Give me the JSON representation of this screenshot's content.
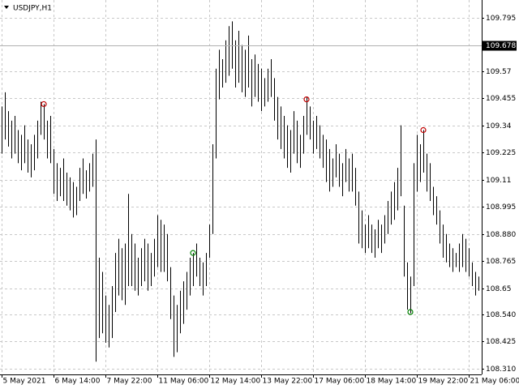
{
  "chart_data": {
    "type": "ohlc",
    "title": "USDJPY,H1",
    "xlim": [
      -0.5,
      148
    ],
    "ylim": [
      108.31,
      109.795
    ],
    "yticks": [
      109.795,
      109.678,
      109.57,
      109.455,
      109.34,
      109.225,
      109.11,
      108.995,
      {
        "value": 108.88,
        "label": "108.880"
      },
      108.765,
      108.65,
      {
        "value": 108.54,
        "label": "108.540"
      },
      108.425,
      {
        "value": 108.31,
        "label": "108.310"
      }
    ],
    "xticks": [
      {
        "value": 0,
        "label": "5 May 2021"
      },
      {
        "value": 16,
        "label": "6 May 14:00"
      },
      {
        "value": 32,
        "label": "7 May 22:00"
      },
      {
        "value": 48,
        "label": "11 May 06:00"
      },
      {
        "value": 64,
        "label": "12 May 14:00"
      },
      {
        "value": 80,
        "label": "13 May 22:00"
      },
      {
        "value": 96,
        "label": "17 May 06:00"
      },
      {
        "value": 112,
        "label": "18 May 14:00"
      },
      {
        "value": 128,
        "label": "19 May 22:00"
      },
      {
        "value": 144,
        "label": "21 May 06:00"
      }
    ],
    "current_price": 109.678,
    "grid": true,
    "color": "#000000",
    "high": [
      109.42,
      109.48,
      109.4,
      109.36,
      109.38,
      109.32,
      109.3,
      109.34,
      109.28,
      109.26,
      109.3,
      109.36,
      109.44,
      109.43,
      109.36,
      109.38,
      109.24,
      109.18,
      109.16,
      109.2,
      109.14,
      109.12,
      109.1,
      109.08,
      109.16,
      109.2,
      109.15,
      109.18,
      109.22,
      109.28,
      108.78,
      108.72,
      108.62,
      108.58,
      108.66,
      108.8,
      108.86,
      108.82,
      108.84,
      109.05,
      108.88,
      108.84,
      108.78,
      108.82,
      108.86,
      108.84,
      108.8,
      108.86,
      108.96,
      108.94,
      108.92,
      108.88,
      108.74,
      108.62,
      108.58,
      108.64,
      108.68,
      108.72,
      108.78,
      108.8,
      108.84,
      108.78,
      108.76,
      108.8,
      108.92,
      109.26,
      109.58,
      109.66,
      109.62,
      109.7,
      109.76,
      109.78,
      109.7,
      109.74,
      109.68,
      109.66,
      109.72,
      109.62,
      109.64,
      109.6,
      109.58,
      109.54,
      109.58,
      109.62,
      109.54,
      109.46,
      109.42,
      109.38,
      109.34,
      109.32,
      109.4,
      109.36,
      109.3,
      109.38,
      109.46,
      109.42,
      109.36,
      109.38,
      109.34,
      109.3,
      109.28,
      109.24,
      109.2,
      109.26,
      109.22,
      109.18,
      109.24,
      109.2,
      109.22,
      109.16,
      109.06,
      108.98,
      108.92,
      108.96,
      108.92,
      108.9,
      108.94,
      108.92,
      108.96,
      109.02,
      109.06,
      109.1,
      109.16,
      109.34,
      109.0,
      108.76,
      108.7,
      109.18,
      109.3,
      109.26,
      109.32,
      109.22,
      109.18,
      109.08,
      109.04,
      108.98,
      108.92,
      108.88,
      108.84,
      108.82,
      108.8,
      108.84,
      108.88,
      108.86,
      108.82,
      108.76,
      108.72,
      108.7,
      108.68
    ],
    "low": [
      109.22,
      109.28,
      109.25,
      109.2,
      109.22,
      109.18,
      109.15,
      109.18,
      109.14,
      109.12,
      109.15,
      109.2,
      109.3,
      109.28,
      109.2,
      109.18,
      109.05,
      109.02,
      109.04,
      109.02,
      109.0,
      108.98,
      108.95,
      108.96,
      109.02,
      109.05,
      109.03,
      109.06,
      109.08,
      108.34,
      108.44,
      108.46,
      108.42,
      108.4,
      108.44,
      108.55,
      108.62,
      108.6,
      108.58,
      108.66,
      108.66,
      108.64,
      108.62,
      108.66,
      108.68,
      108.64,
      108.66,
      108.7,
      108.74,
      108.72,
      108.72,
      108.68,
      108.52,
      108.36,
      108.38,
      108.46,
      108.5,
      108.56,
      108.62,
      108.66,
      108.7,
      108.66,
      108.62,
      108.66,
      108.78,
      108.88,
      109.2,
      109.45,
      109.5,
      109.52,
      109.55,
      109.58,
      109.5,
      109.52,
      109.48,
      109.46,
      109.5,
      109.42,
      109.46,
      109.44,
      109.4,
      109.42,
      109.44,
      109.46,
      109.36,
      109.28,
      109.24,
      109.2,
      109.16,
      109.14,
      109.22,
      109.18,
      109.16,
      109.22,
      109.3,
      109.28,
      109.22,
      109.24,
      109.2,
      109.16,
      109.1,
      109.06,
      109.08,
      109.12,
      109.08,
      109.04,
      109.1,
      109.06,
      109.06,
      109.0,
      108.84,
      108.82,
      108.8,
      108.82,
      108.8,
      108.78,
      108.82,
      108.8,
      108.84,
      108.88,
      108.92,
      108.94,
      108.98,
      109.04,
      108.7,
      108.56,
      108.545,
      108.66,
      109.06,
      109.1,
      109.14,
      109.06,
      109.02,
      108.96,
      108.92,
      108.84,
      108.78,
      108.76,
      108.74,
      108.72,
      108.74,
      108.72,
      108.74,
      108.72,
      108.7,
      108.66,
      108.62,
      108.64,
      108.62
    ],
    "signals": [
      {
        "index": 13,
        "value": 109.43,
        "color": "#c00000"
      },
      {
        "index": 59,
        "value": 108.8,
        "color": "#008000"
      },
      {
        "index": 94,
        "value": 109.45,
        "color": "#c00000"
      },
      {
        "index": 126,
        "value": 108.55,
        "color": "#008000"
      },
      {
        "index": 130,
        "value": 109.32,
        "color": "#c00000"
      }
    ]
  }
}
